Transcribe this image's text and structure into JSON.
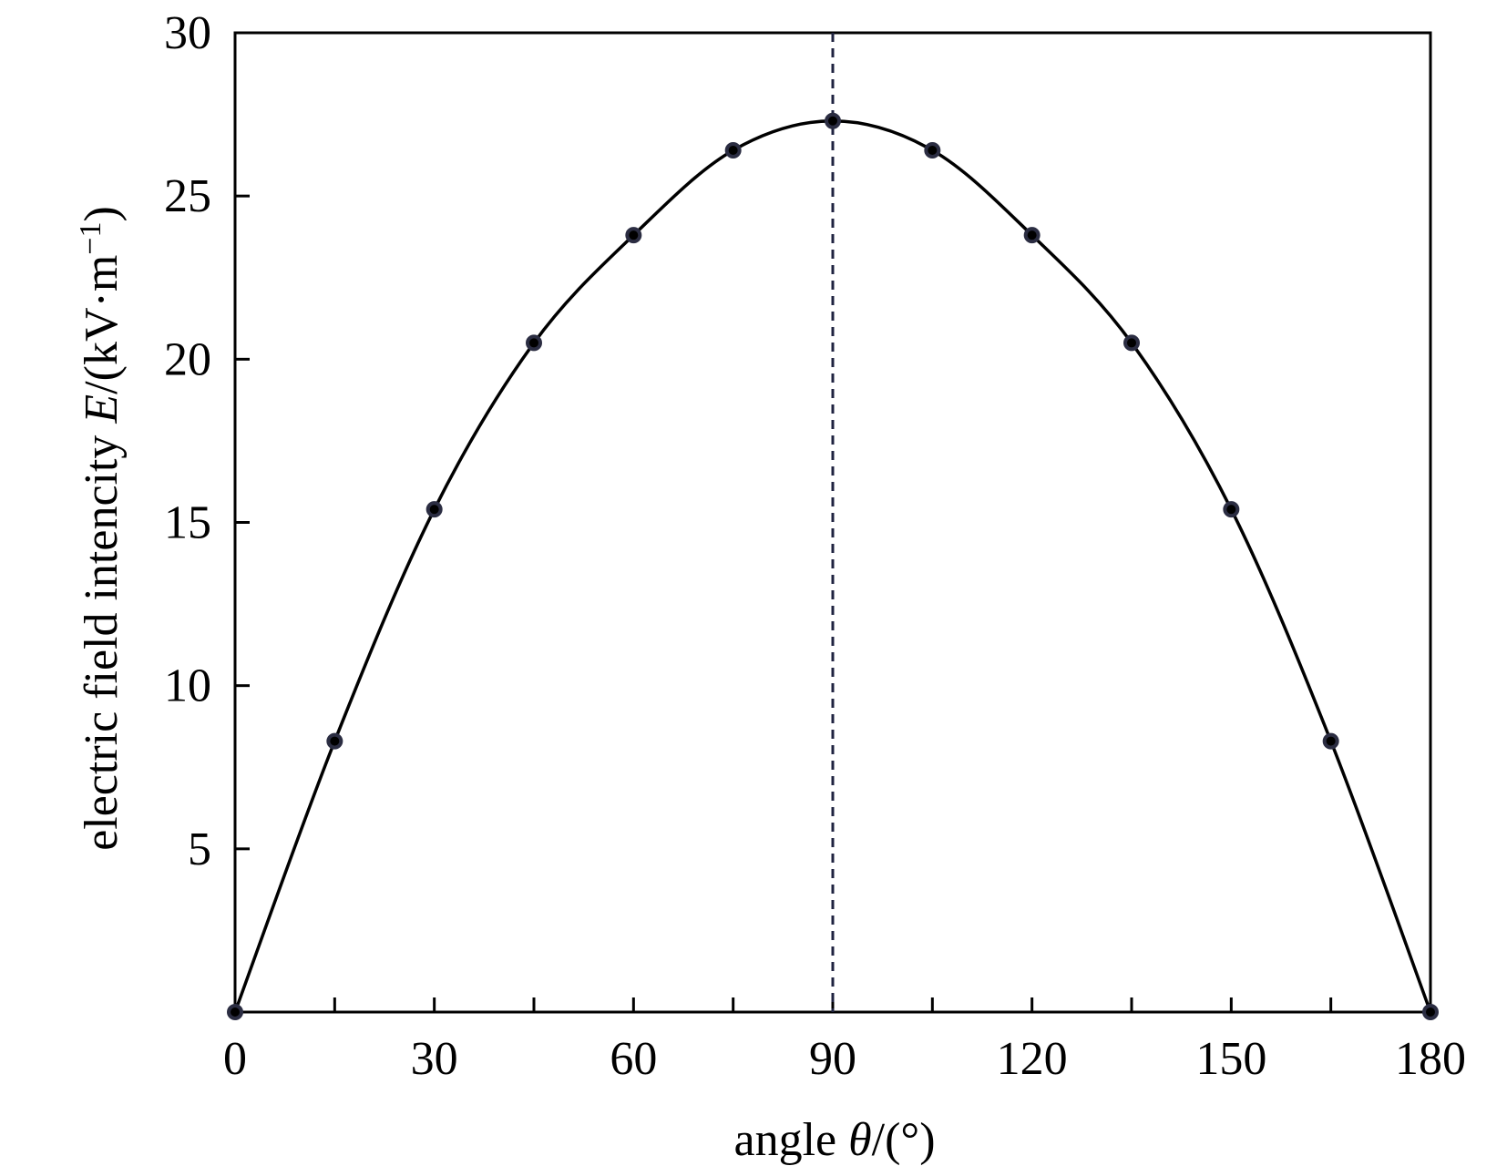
{
  "chart_data": {
    "type": "line",
    "xlabel": {
      "prefix": "angle ",
      "symbol": "θ",
      "suffix": "/(°)"
    },
    "ylabel": {
      "prefix": "electric field intencity ",
      "symbol": "E",
      "unit_open": "/(kV·m",
      "unit_sup": "−1",
      "unit_close": ")"
    },
    "xlim": [
      0,
      180
    ],
    "ylim": [
      0,
      30
    ],
    "xticks": [
      0,
      30,
      60,
      90,
      120,
      150,
      180
    ],
    "yticks": [
      5,
      10,
      15,
      20,
      25,
      30
    ],
    "xtick_labels": [
      "0",
      "30",
      "60",
      "90",
      "120",
      "150",
      "180"
    ],
    "ytick_labels": [
      "5",
      "10",
      "15",
      "20",
      "25",
      "30"
    ],
    "x_minor_ticks": [
      15,
      45,
      75,
      105,
      135,
      165
    ],
    "grid": false,
    "reference_line": {
      "x": 90,
      "style": "dashed"
    },
    "series": [
      {
        "x": [
          0,
          15,
          30,
          45,
          60,
          75,
          90,
          105,
          120,
          135,
          150,
          165,
          180
        ],
        "y": [
          0,
          8.3,
          15.4,
          20.5,
          23.8,
          26.4,
          27.3,
          26.4,
          23.8,
          20.5,
          15.4,
          8.3,
          0
        ],
        "line_color": "#000000",
        "marker_color": "#2b2d42"
      }
    ]
  }
}
